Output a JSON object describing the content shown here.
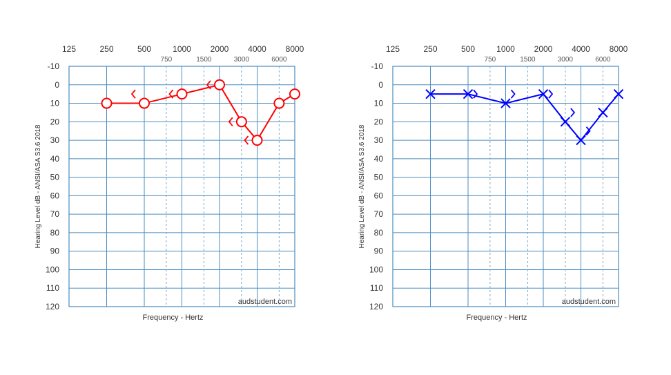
{
  "chart_data": [
    {
      "type": "line",
      "ear": "right",
      "color": "#ff0000",
      "symbol": "circle",
      "bone_symbol": "<",
      "top_freq_labels": [
        "125",
        "250",
        "500",
        "1000",
        "2000",
        "4000",
        "8000"
      ],
      "mid_freq_labels": [
        "750",
        "1500",
        "3000",
        "6000"
      ],
      "ylabel": "Hearing Level dB - ANSI/ASA S3.6 2018",
      "xlabel": "Frequency - Hertz",
      "watermark": "audstudent.com",
      "y_ticks": [
        "-10",
        "0",
        "10",
        "20",
        "30",
        "40",
        "50",
        "60",
        "70",
        "80",
        "90",
        "100",
        "110",
        "120"
      ],
      "ylim": [
        -10,
        120
      ],
      "air": [
        {
          "freq": 250,
          "db": 10
        },
        {
          "freq": 500,
          "db": 10
        },
        {
          "freq": 1000,
          "db": 5
        },
        {
          "freq": 2000,
          "db": 0
        },
        {
          "freq": 3000,
          "db": 20
        },
        {
          "freq": 4000,
          "db": 30
        },
        {
          "freq": 6000,
          "db": 10
        },
        {
          "freq": 8000,
          "db": 5
        }
      ],
      "bone": [
        {
          "freq": 500,
          "db": 5
        },
        {
          "freq": 1000,
          "db": 5
        },
        {
          "freq": 2000,
          "db": 0
        },
        {
          "freq": 3000,
          "db": 20
        },
        {
          "freq": 4000,
          "db": 30
        }
      ]
    },
    {
      "type": "line",
      "ear": "left",
      "color": "#0000ff",
      "symbol": "x",
      "bone_symbol": ">",
      "top_freq_labels": [
        "125",
        "250",
        "500",
        "1000",
        "2000",
        "4000",
        "8000"
      ],
      "mid_freq_labels": [
        "750",
        "1500",
        "3000",
        "6000"
      ],
      "ylabel": "Hearing Level dB - ANSI/ASA S3.6 2018",
      "xlabel": "Frequency - Hertz",
      "watermark": "audstudent.com",
      "y_ticks": [
        "-10",
        "0",
        "10",
        "20",
        "30",
        "40",
        "50",
        "60",
        "70",
        "80",
        "90",
        "100",
        "110",
        "120"
      ],
      "ylim": [
        -10,
        120
      ],
      "air": [
        {
          "freq": 250,
          "db": 5
        },
        {
          "freq": 500,
          "db": 5
        },
        {
          "freq": 1000,
          "db": 10
        },
        {
          "freq": 2000,
          "db": 5
        },
        {
          "freq": 3000,
          "db": 20
        },
        {
          "freq": 4000,
          "db": 30
        },
        {
          "freq": 6000,
          "db": 15
        },
        {
          "freq": 8000,
          "db": 5
        }
      ],
      "bone": [
        {
          "freq": 500,
          "db": 5
        },
        {
          "freq": 1000,
          "db": 5
        },
        {
          "freq": 2000,
          "db": 5
        },
        {
          "freq": 3000,
          "db": 15
        },
        {
          "freq": 4000,
          "db": 25
        }
      ]
    }
  ]
}
